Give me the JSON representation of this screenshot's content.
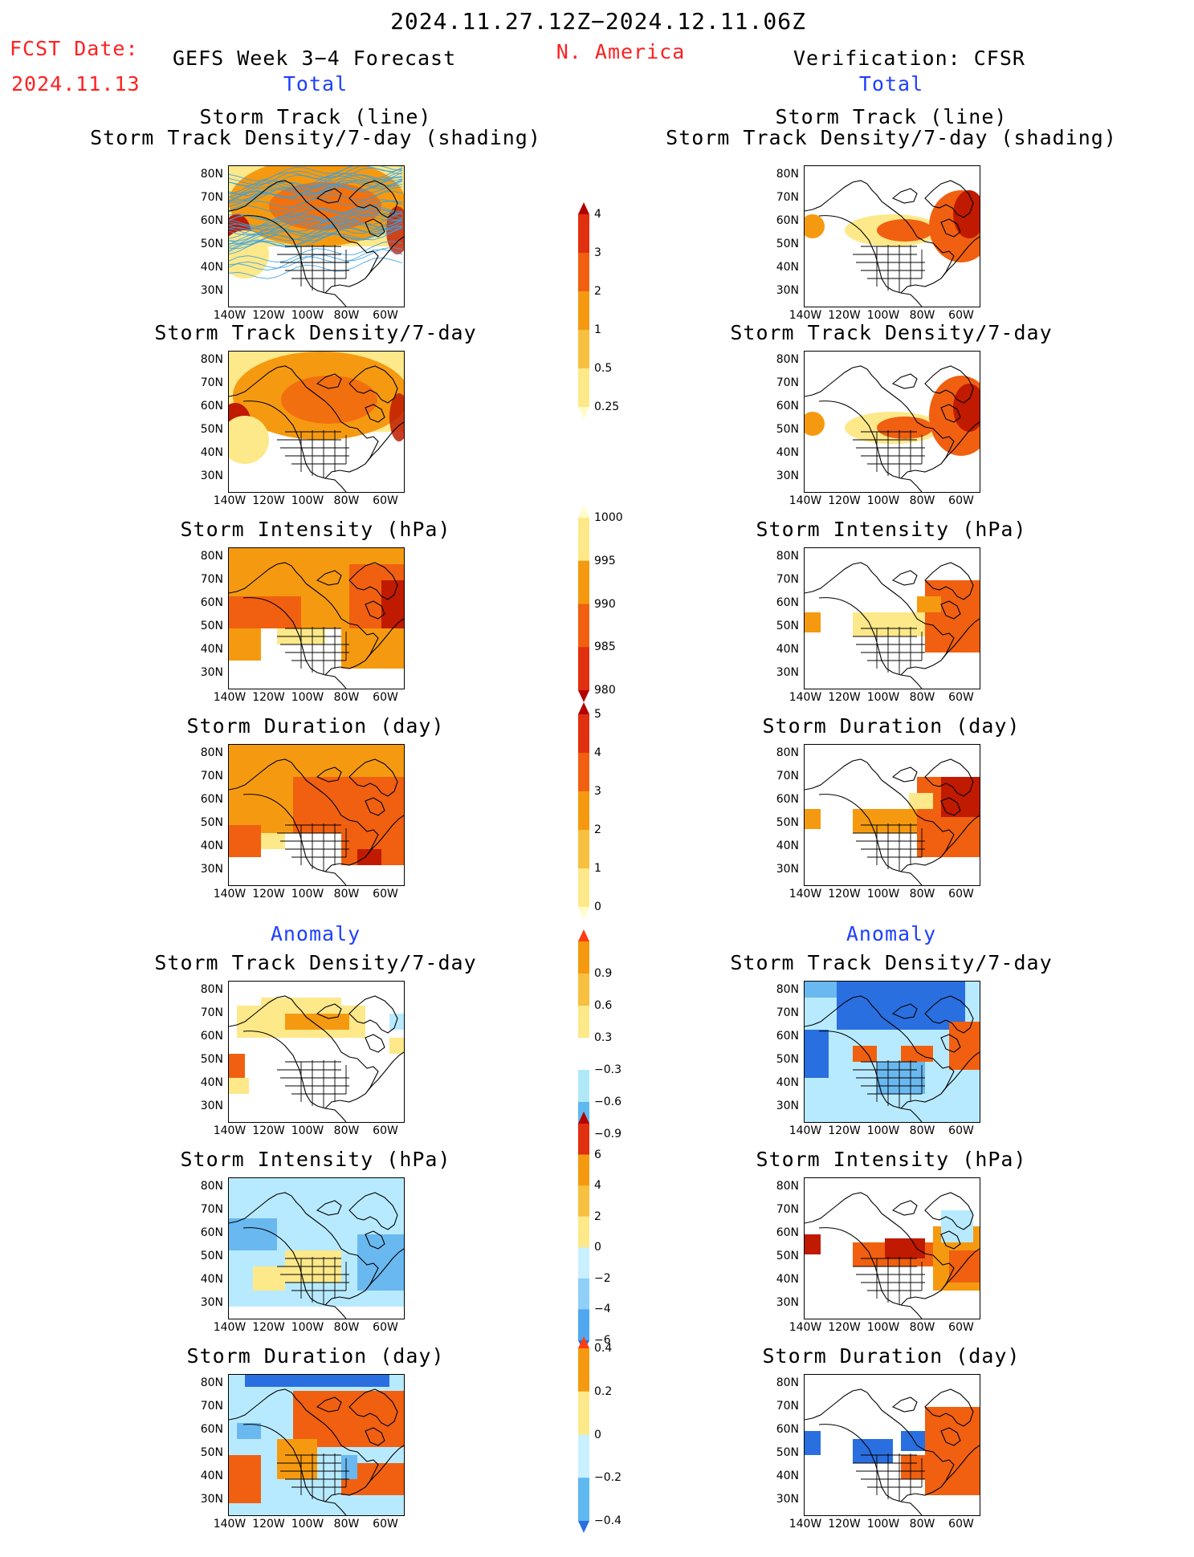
{
  "header": {
    "period": "2024.11.27.12Z−2024.12.11.06Z",
    "fcst_label": "FCST Date:",
    "fcst_date": "2024.11.13",
    "left_title": "GEFS Week 3−4 Forecast",
    "region": "N. America",
    "right_title": "Verification: CFSR",
    "total_left": "Total",
    "total_right": "Total",
    "anomaly_left": "Anomaly",
    "anomaly_right": "Anomaly"
  },
  "axes": {
    "lat_labels": [
      "80N",
      "70N",
      "60N",
      "50N",
      "40N",
      "30N"
    ],
    "lon_labels": [
      "140W",
      "120W",
      "100W",
      "80W",
      "60W"
    ]
  },
  "panels": [
    {
      "id": "fc-track",
      "title1": "Storm Track (line)",
      "title2": "Storm Track Density/7-day (shading)"
    },
    {
      "id": "fc-density",
      "title1": "Storm Track Density/7-day"
    },
    {
      "id": "fc-intensity",
      "title1": "Storm Intensity (hPa)"
    },
    {
      "id": "fc-duration",
      "title1": "Storm Duration (day)"
    },
    {
      "id": "fc-density-anom",
      "title1": "Storm Track Density/7-day"
    },
    {
      "id": "fc-intensity-anom",
      "title1": "Storm Intensity (hPa)"
    },
    {
      "id": "fc-duration-anom",
      "title1": "Storm Duration (day)"
    },
    {
      "id": "vf-track",
      "title1": "Storm Track (line)",
      "title2": "Storm Track Density/7-day (shading)"
    },
    {
      "id": "vf-density",
      "title1": "Storm Track Density/7-day"
    },
    {
      "id": "vf-intensity",
      "title1": "Storm Intensity (hPa)"
    },
    {
      "id": "vf-duration",
      "title1": "Storm Duration (day)"
    },
    {
      "id": "vf-density-anom",
      "title1": "Storm Track Density/7-day"
    },
    {
      "id": "vf-intensity-anom",
      "title1": "Storm Intensity (hPa)"
    },
    {
      "id": "vf-duration-anom",
      "title1": "Storm Duration (day)"
    }
  ],
  "colorbars": [
    {
      "id": "cb-density",
      "labels": [
        "4",
        "3",
        "2",
        "1",
        "0.5",
        "0.25"
      ],
      "colors": [
        "#b30000",
        "#e03010",
        "#f06010",
        "#f59a10",
        "#f8c040",
        "#fde88a",
        "#fffcc8"
      ]
    },
    {
      "id": "cb-intensity",
      "labels": [
        "1000",
        "995",
        "990",
        "985",
        "980"
      ],
      "colors": [
        "#fffcc8",
        "#fde88a",
        "#f59a10",
        "#f06010",
        "#e03010",
        "#b30000"
      ]
    },
    {
      "id": "cb-duration",
      "labels": [
        "5",
        "4",
        "3",
        "2",
        "1",
        "0"
      ],
      "colors": [
        "#b30000",
        "#e03010",
        "#f06010",
        "#f59a10",
        "#f8c040",
        "#fde88a",
        "#fffcc8"
      ]
    },
    {
      "id": "cb-density-anom",
      "labels": [
        "0.9",
        "0.6",
        "0.3",
        "−0.3",
        "−0.6",
        "−0.9"
      ],
      "colors": [
        "#ff3c10",
        "#f59a10",
        "#f8c040",
        "#fde88a",
        "#ffffff",
        "#b0e8f8",
        "#60b8f0",
        "#2a6fe0"
      ]
    },
    {
      "id": "cb-intensity-anom",
      "labels": [
        "6",
        "4",
        "2",
        "0",
        "−2",
        "−4",
        "−6"
      ],
      "colors": [
        "#b30000",
        "#e03010",
        "#f59a10",
        "#f8c040",
        "#fde88a",
        "#c8f0ff",
        "#90d0f8",
        "#50a8f0",
        "#2a6fe0"
      ]
    },
    {
      "id": "cb-duration-anom",
      "labels": [
        "0.4",
        "0.2",
        "0",
        "−0.2",
        "−0.4"
      ],
      "colors": [
        "#ff3c10",
        "#f59a10",
        "#fde88a",
        "#c8f0ff",
        "#60b8f0",
        "#2a6fe0"
      ]
    }
  ],
  "palette": {
    "coast": "#000000",
    "track": "#3aa0e0",
    "warm_light": "#fde88a",
    "warm_mid": "#f59a10",
    "warm_strong": "#f06010",
    "warm_max": "#c01a00",
    "cool_light": "#b8eaff",
    "cool_mid": "#6ab8f0",
    "cool_strong": "#2a6fe0"
  }
}
